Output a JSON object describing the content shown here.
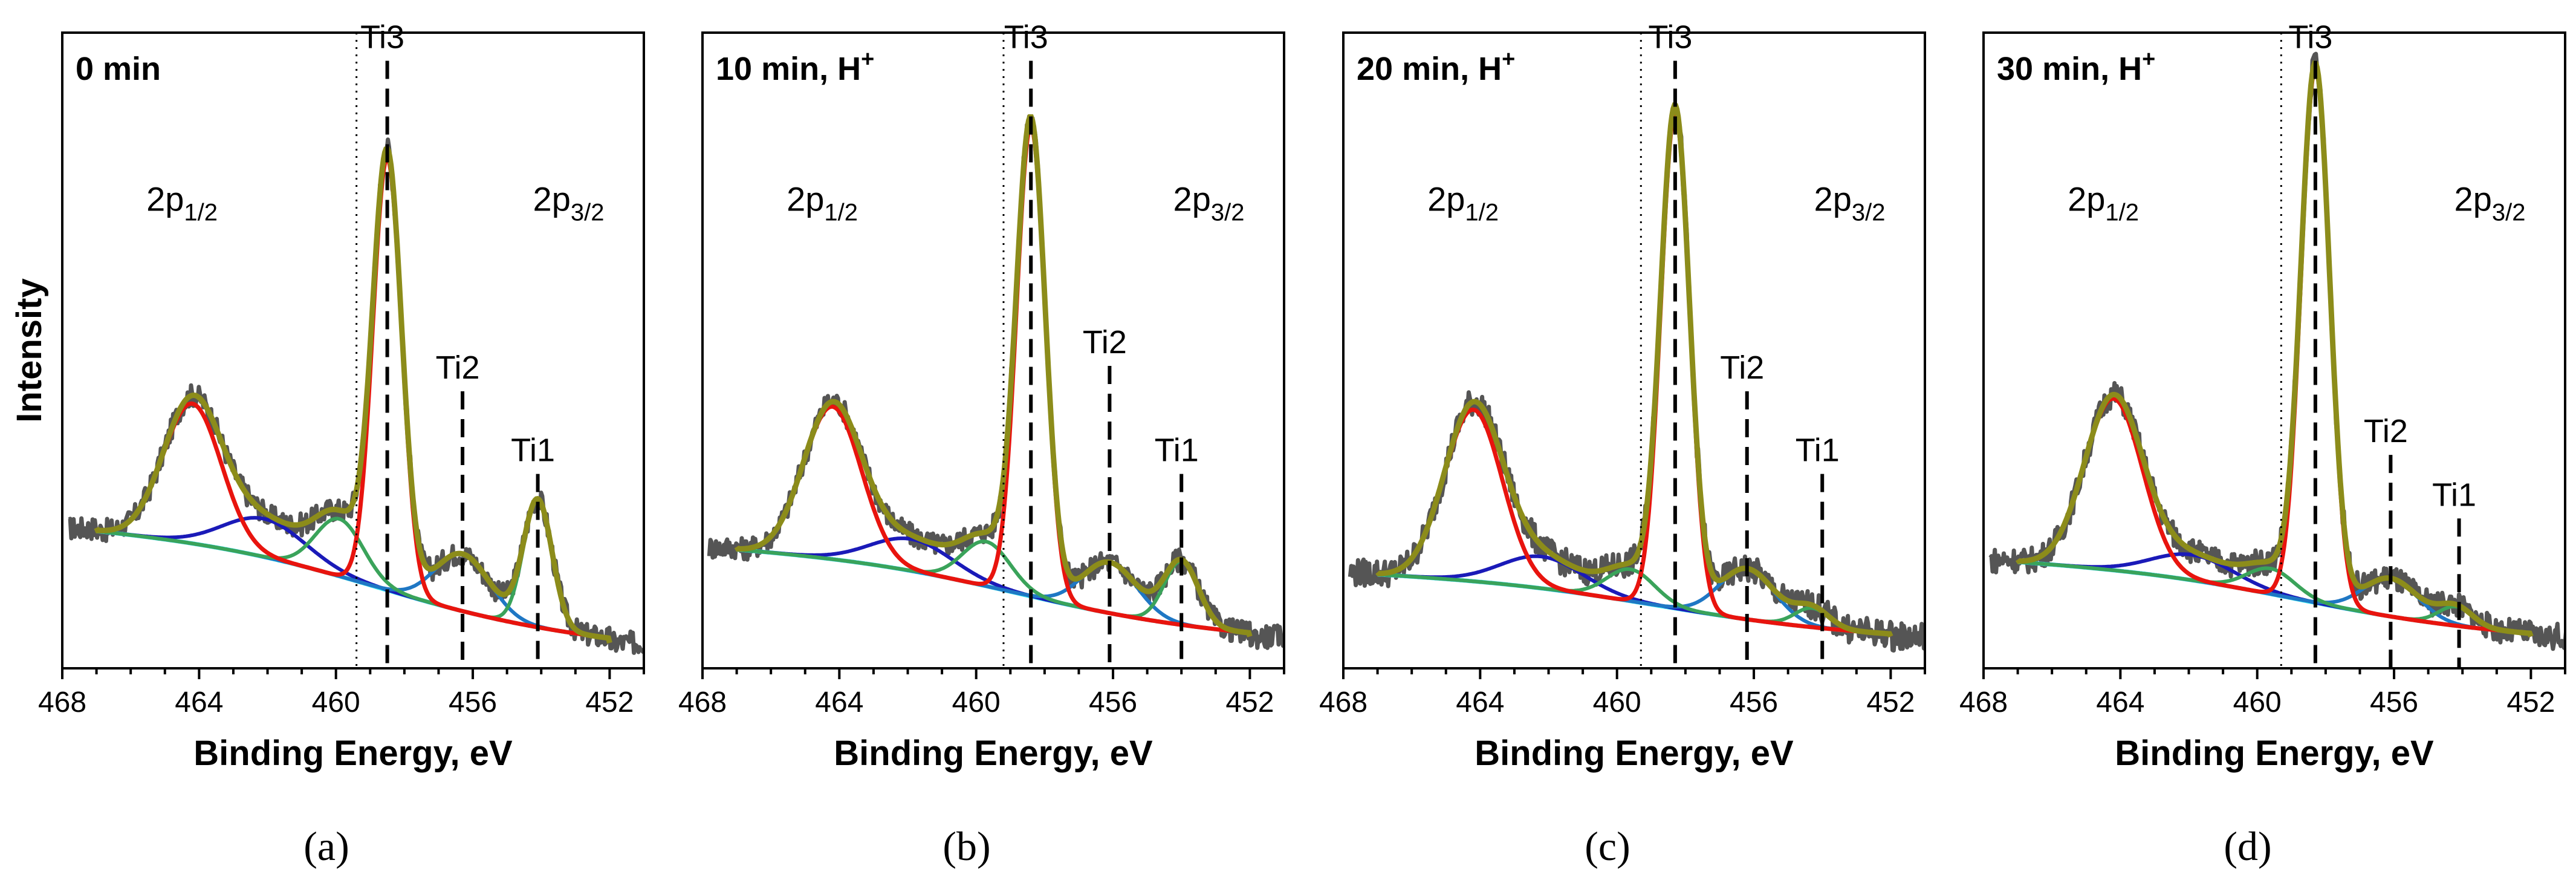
{
  "chart_data": [
    {
      "type": "line",
      "panel_label": "(a)",
      "title": "0 min",
      "xlabel": "Binding Energy, eV",
      "ylabel": "Intensity",
      "xlim": [
        468,
        451
      ],
      "ylim": [
        0,
        1
      ],
      "x_ticks": [
        "468",
        "464",
        "460",
        "456",
        "452"
      ],
      "region_labels": [
        {
          "base": "2p",
          "sub": "1/2",
          "x": 464.5,
          "y": 0.72
        },
        {
          "base": "2p",
          "sub": "3/2",
          "x": 453.2,
          "y": 0.72
        }
      ],
      "dotted_line_x": 459.4,
      "peaks": [
        {
          "name": "Ti3",
          "x": 458.5,
          "label_y": 0.97
        },
        {
          "name": "Ti2",
          "x": 456.3,
          "label_y": 0.45
        },
        {
          "name": "Ti1",
          "x": 454.1,
          "label_y": 0.32
        }
      ],
      "components": {
        "background": {
          "x_start": 467.0,
          "x_end": 452.0,
          "y_start": 0.22,
          "y_end": 0.04
        },
        "ti3": [
          {
            "center": 458.5,
            "height": 0.68,
            "width": 0.42
          },
          {
            "center": 464.2,
            "height": 0.22,
            "width": 0.85
          }
        ],
        "ti2": [
          {
            "center": 456.3,
            "height": 0.09,
            "width": 0.8
          },
          {
            "center": 462.1,
            "height": 0.06,
            "width": 1.2
          }
        ],
        "ti1": [
          {
            "center": 454.1,
            "height": 0.2,
            "width": 0.42
          },
          {
            "center": 459.9,
            "height": 0.09,
            "width": 0.7
          }
        ],
        "noise_amplitude": 0.018
      }
    },
    {
      "type": "line",
      "panel_label": "(b)",
      "title": "10 min, H",
      "title_sup": "+",
      "xlabel": "Binding Energy, eV",
      "ylabel": "",
      "xlim": [
        468,
        451
      ],
      "ylim": [
        0,
        1
      ],
      "x_ticks": [
        "468",
        "464",
        "460",
        "456",
        "452"
      ],
      "region_labels": [
        {
          "base": "2p",
          "sub": "1/2",
          "x": 464.5,
          "y": 0.72
        },
        {
          "base": "2p",
          "sub": "3/2",
          "x": 453.2,
          "y": 0.72
        }
      ],
      "dotted_line_x": 459.2,
      "peaks": [
        {
          "name": "Ti3",
          "x": 458.4,
          "label_y": 0.97
        },
        {
          "name": "Ti2",
          "x": 456.1,
          "label_y": 0.49
        },
        {
          "name": "Ti1",
          "x": 454.0,
          "label_y": 0.32
        }
      ],
      "components": {
        "background": {
          "x_start": 467.0,
          "x_end": 452.0,
          "y_start": 0.19,
          "y_end": 0.05
        },
        "ti3": [
          {
            "center": 458.4,
            "height": 0.74,
            "width": 0.42
          },
          {
            "center": 464.2,
            "height": 0.24,
            "width": 0.85
          }
        ],
        "ti2": [
          {
            "center": 456.1,
            "height": 0.08,
            "width": 0.8
          },
          {
            "center": 461.9,
            "height": 0.05,
            "width": 1.2
          }
        ],
        "ti1": [
          {
            "center": 454.0,
            "height": 0.1,
            "width": 0.5
          },
          {
            "center": 459.7,
            "height": 0.07,
            "width": 0.7
          }
        ],
        "noise_amplitude": 0.018
      }
    },
    {
      "type": "line",
      "panel_label": "(c)",
      "title": "20 min, H",
      "title_sup": "+",
      "xlabel": "Binding Energy, eV",
      "ylabel": "",
      "xlim": [
        468,
        451
      ],
      "ylim": [
        0,
        1
      ],
      "x_ticks": [
        "468",
        "464",
        "460",
        "456",
        "452"
      ],
      "region_labels": [
        {
          "base": "2p",
          "sub": "1/2",
          "x": 464.5,
          "y": 0.72
        },
        {
          "base": "2p",
          "sub": "3/2",
          "x": 453.2,
          "y": 0.72
        }
      ],
      "dotted_line_x": 459.3,
      "peaks": [
        {
          "name": "Ti3",
          "x": 458.3,
          "label_y": 0.97
        },
        {
          "name": "Ti2",
          "x": 456.2,
          "label_y": 0.45
        },
        {
          "name": "Ti1",
          "x": 454.0,
          "label_y": 0.32
        }
      ],
      "components": {
        "background": {
          "x_start": 467.0,
          "x_end": 452.0,
          "y_start": 0.15,
          "y_end": 0.05
        },
        "ti3": [
          {
            "center": 458.3,
            "height": 0.78,
            "width": 0.42
          },
          {
            "center": 464.2,
            "height": 0.27,
            "width": 0.85
          }
        ],
        "ti2": [
          {
            "center": 456.2,
            "height": 0.08,
            "width": 0.8
          },
          {
            "center": 462.2,
            "height": 0.05,
            "width": 1.2
          }
        ],
        "ti1": [
          {
            "center": 454.3,
            "height": 0.03,
            "width": 0.5
          },
          {
            "center": 459.6,
            "height": 0.05,
            "width": 0.7
          }
        ],
        "noise_amplitude": 0.022
      }
    },
    {
      "type": "line",
      "panel_label": "(d)",
      "title": "30 min, H",
      "title_sup": "+",
      "xlabel": "Binding Energy, eV",
      "ylabel": "",
      "xlim": [
        468,
        451
      ],
      "ylim": [
        0,
        1
      ],
      "x_ticks": [
        "468",
        "464",
        "460",
        "456",
        "452"
      ],
      "region_labels": [
        {
          "base": "2p",
          "sub": "1/2",
          "x": 464.5,
          "y": 0.72
        },
        {
          "base": "2p",
          "sub": "3/2",
          "x": 453.2,
          "y": 0.72
        }
      ],
      "dotted_line_x": 459.3,
      "peaks": [
        {
          "name": "Ti3",
          "x": 458.3,
          "label_y": 0.97
        },
        {
          "name": "Ti2",
          "x": 456.1,
          "label_y": 0.35
        },
        {
          "name": "Ti1",
          "x": 454.1,
          "label_y": 0.25
        }
      ],
      "components": {
        "background": {
          "x_start": 467.0,
          "x_end": 452.0,
          "y_start": 0.17,
          "y_end": 0.05
        },
        "ti3": [
          {
            "center": 458.3,
            "height": 0.84,
            "width": 0.42
          },
          {
            "center": 464.2,
            "height": 0.27,
            "width": 0.85
          }
        ],
        "ti2": [
          {
            "center": 456.1,
            "height": 0.06,
            "width": 0.8
          },
          {
            "center": 461.9,
            "height": 0.04,
            "width": 1.2
          }
        ],
        "ti1": [
          {
            "center": 454.2,
            "height": 0.03,
            "width": 0.5
          },
          {
            "center": 459.6,
            "height": 0.04,
            "width": 0.7
          }
        ],
        "noise_amplitude": 0.02
      }
    }
  ],
  "colors": {
    "raw": "#555555",
    "envelope": "#8C8C1A",
    "ti3": "#E8140E",
    "ti2_main": "#1F77C4",
    "ti2_sat": "#1A1AB8",
    "ti1": "#3AA35A",
    "background": "#2EE6F0",
    "marker": "#000000"
  }
}
